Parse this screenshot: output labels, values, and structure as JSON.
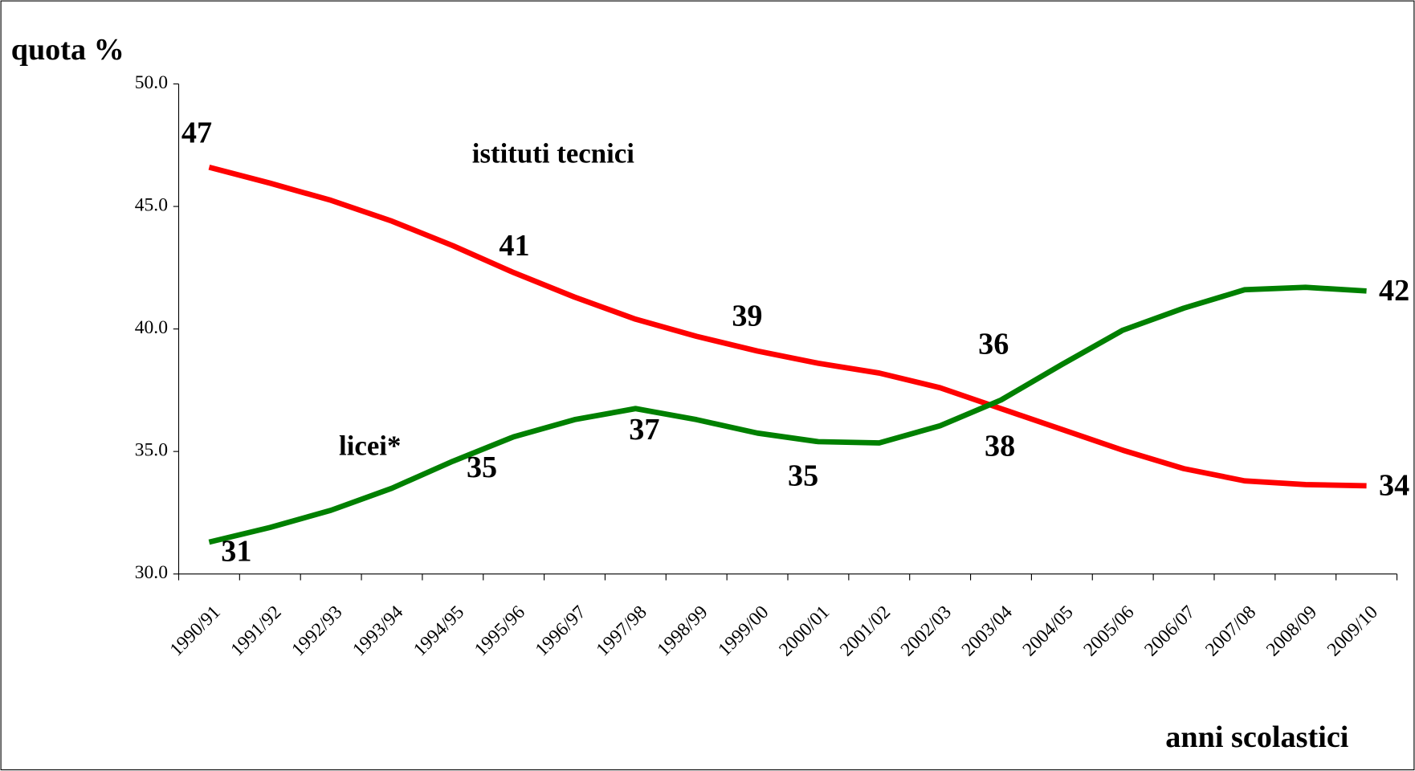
{
  "chart_data": {
    "type": "line",
    "y_label": "quota %",
    "x_label": "anni scolastici",
    "categories": [
      "1990/91",
      "1991/92",
      "1992/93",
      "1993/94",
      "1994/95",
      "1995/96",
      "1996/97",
      "1997/98",
      "1998/99",
      "1999/00",
      "2000/01",
      "2001/02",
      "2002/03",
      "2003/04",
      "2004/05",
      "2005/06",
      "2006/07",
      "2007/08",
      "2008/09",
      "2009/10"
    ],
    "series": [
      {
        "name": "istituti tecnici",
        "color": "#ff0000",
        "values": [
          46.6,
          45.95,
          45.25,
          44.4,
          43.4,
          42.3,
          41.3,
          40.4,
          39.7,
          39.1,
          38.6,
          38.2,
          37.6,
          36.75,
          35.9,
          35.05,
          34.3,
          33.8,
          33.65,
          33.6
        ]
      },
      {
        "name": "licei*",
        "color": "#008000",
        "values": [
          31.3,
          31.9,
          32.6,
          33.5,
          34.6,
          35.6,
          36.3,
          36.75,
          36.3,
          35.75,
          35.4,
          35.35,
          36.05,
          37.1,
          38.55,
          39.95,
          40.85,
          41.6,
          41.7,
          41.55
        ]
      }
    ],
    "annotations": [
      "47",
      "41",
      "39",
      "36",
      "34",
      "31",
      "35",
      "37",
      "35",
      "38",
      "42"
    ],
    "ylim": [
      30,
      50
    ],
    "yticks": [
      {
        "value": 30,
        "label": "30.0"
      },
      {
        "value": 35,
        "label": "35.0"
      },
      {
        "value": 40,
        "label": "40.0"
      },
      {
        "value": 45,
        "label": "45.0"
      },
      {
        "value": 50,
        "label": "50.0"
      }
    ],
    "grid": false
  }
}
